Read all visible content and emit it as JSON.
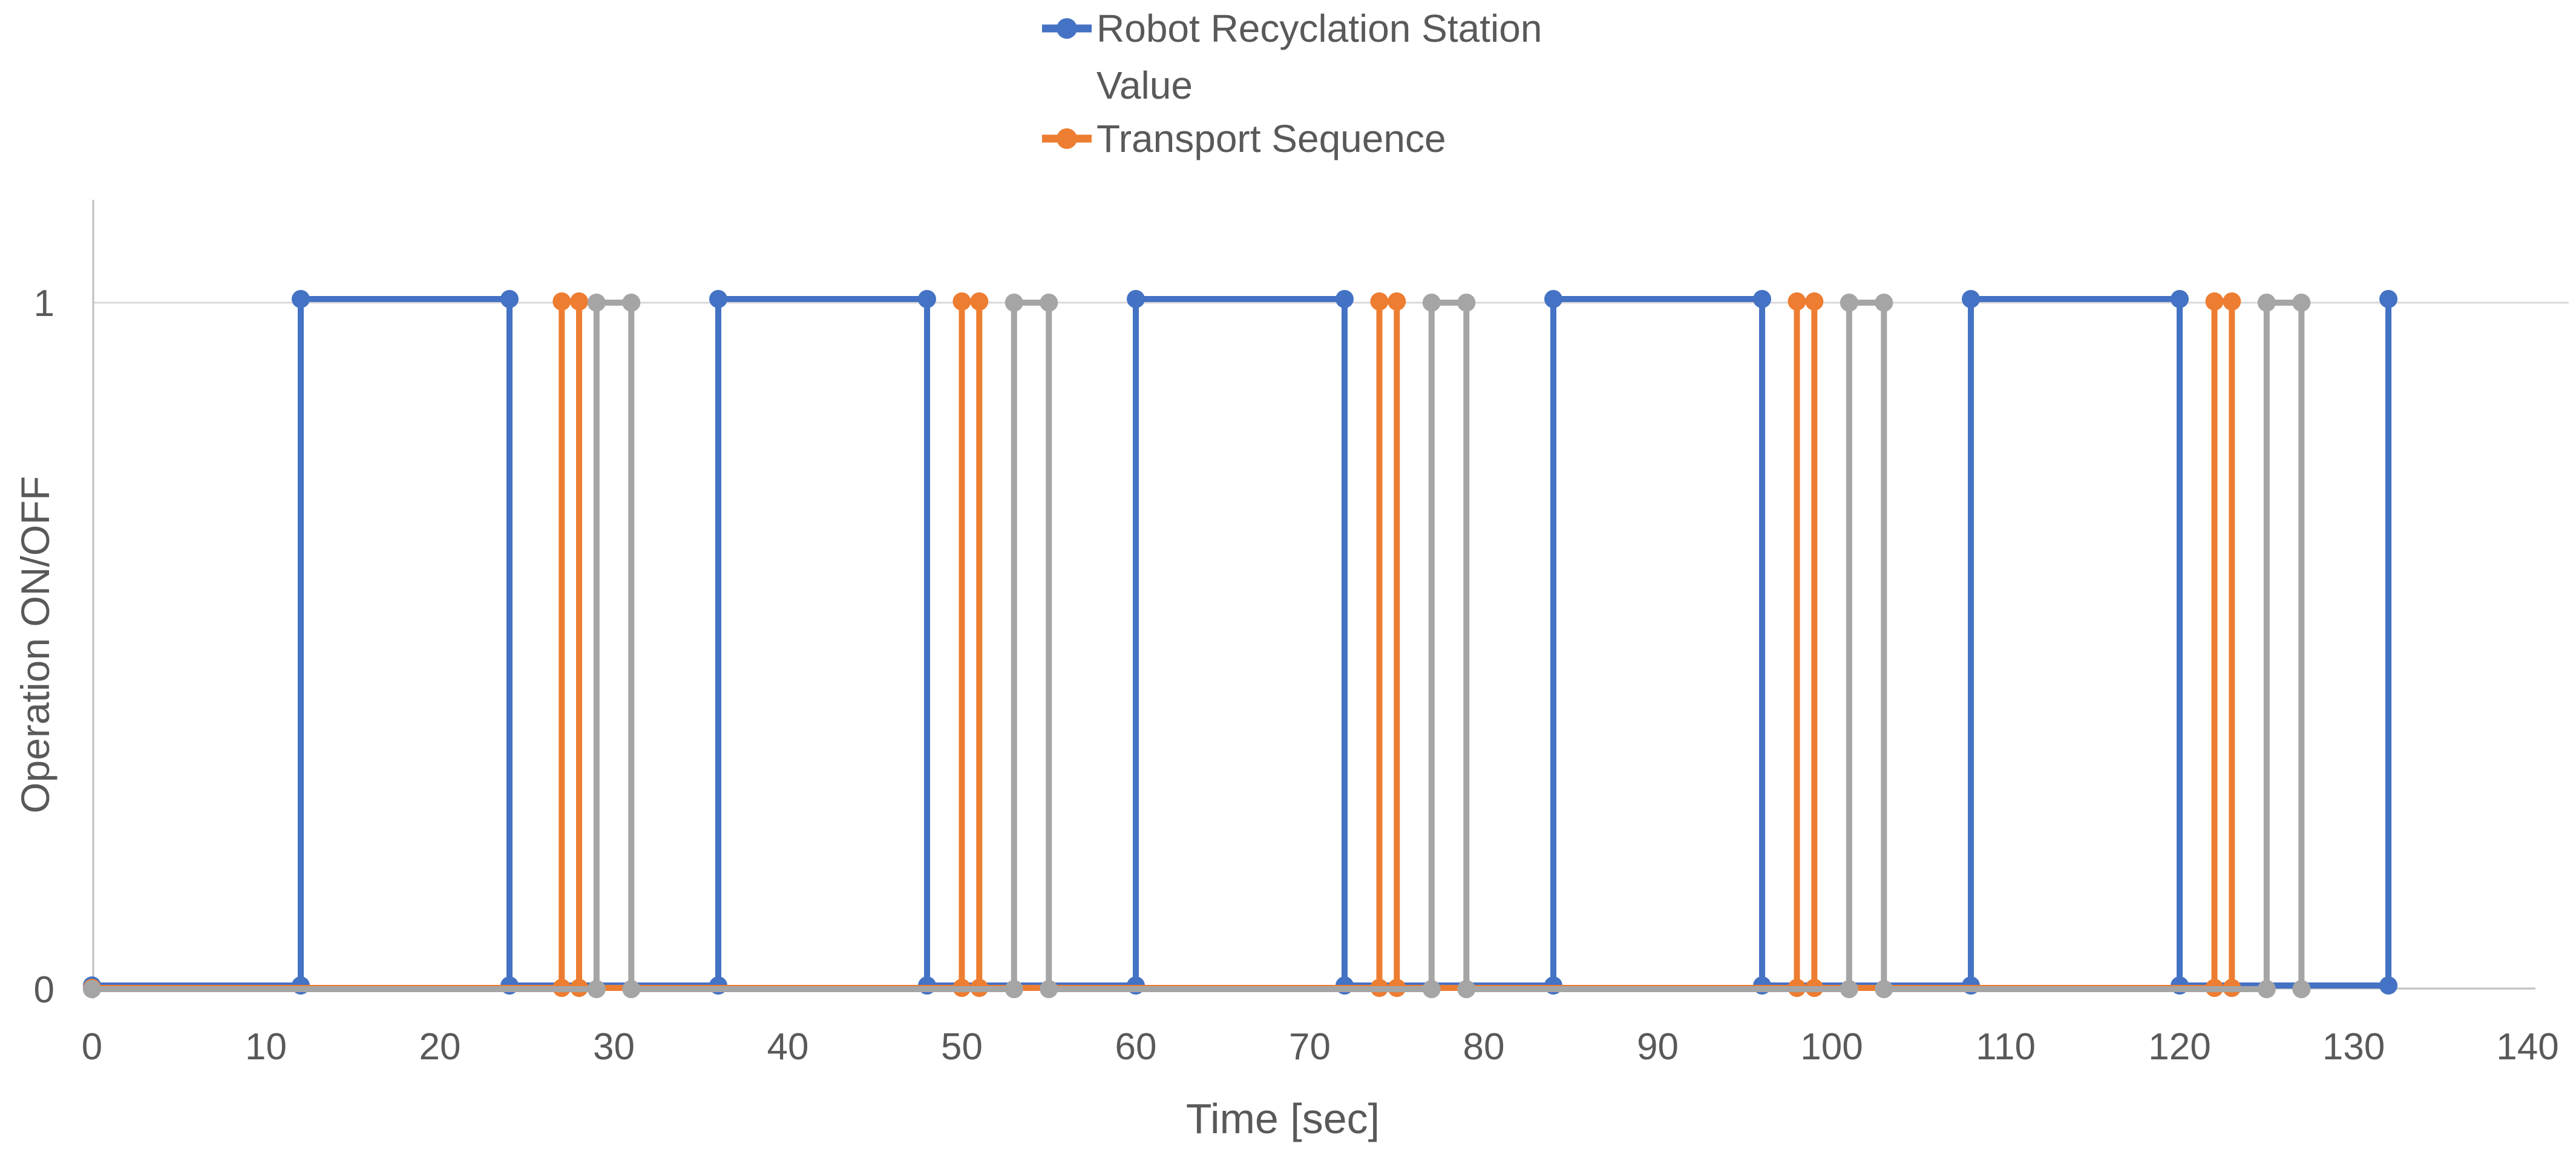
{
  "chart_data": {
    "type": "line",
    "subtype": "step-pulse-with-circle-markers",
    "title": "",
    "xlabel": "Time [sec]",
    "ylabel": "Operation ON/OFF",
    "xlim": [
      0,
      140
    ],
    "ylim": [
      0,
      1
    ],
    "x_ticks": [
      0,
      10,
      20,
      30,
      40,
      50,
      60,
      70,
      80,
      90,
      100,
      110,
      120,
      130,
      140
    ],
    "y_ticks": [
      0,
      1
    ],
    "grid": "single horizontal gridline at y=1",
    "legend_position": "top-center",
    "colors": {
      "blue": "#4472C4",
      "orange": "#ED7D31",
      "gray": "#A5A5A5",
      "gridline": "#D9D9D9",
      "axis_line": "#BFBFBF",
      "label_text": "#595959"
    },
    "series": [
      {
        "name": "Robot Recyclation Station Value",
        "color": "#4472C4",
        "in_legend": true,
        "points": [
          [
            0,
            0
          ],
          [
            12,
            0
          ],
          [
            12,
            1
          ],
          [
            24,
            1
          ],
          [
            24,
            0
          ],
          [
            36,
            0
          ],
          [
            36,
            1
          ],
          [
            48,
            1
          ],
          [
            48,
            0
          ],
          [
            60,
            0
          ],
          [
            60,
            1
          ],
          [
            72,
            1
          ],
          [
            72,
            0
          ],
          [
            84,
            0
          ],
          [
            84,
            1
          ],
          [
            96,
            1
          ],
          [
            96,
            0
          ],
          [
            108,
            0
          ],
          [
            108,
            1
          ],
          [
            120,
            1
          ],
          [
            120,
            0
          ],
          [
            132,
            0
          ],
          [
            132,
            1
          ]
        ]
      },
      {
        "name": "Transport Sequence",
        "color": "#ED7D31",
        "in_legend": true,
        "points": [
          [
            0,
            0
          ],
          [
            27,
            0
          ],
          [
            27,
            1
          ],
          [
            28,
            1
          ],
          [
            28,
            0
          ],
          [
            50,
            0
          ],
          [
            50,
            1
          ],
          [
            51,
            1
          ],
          [
            51,
            0
          ],
          [
            74,
            0
          ],
          [
            74,
            1
          ],
          [
            75,
            1
          ],
          [
            75,
            0
          ],
          [
            98,
            0
          ],
          [
            98,
            1
          ],
          [
            99,
            1
          ],
          [
            99,
            0
          ],
          [
            122,
            0
          ],
          [
            122,
            1
          ],
          [
            123,
            1
          ],
          [
            123,
            0
          ]
        ]
      },
      {
        "name": "",
        "color": "#A5A5A5",
        "in_legend": false,
        "points": [
          [
            0,
            0
          ],
          [
            29,
            0
          ],
          [
            29,
            1
          ],
          [
            31,
            1
          ],
          [
            31,
            0
          ],
          [
            53,
            0
          ],
          [
            53,
            1
          ],
          [
            55,
            1
          ],
          [
            55,
            0
          ],
          [
            77,
            0
          ],
          [
            77,
            1
          ],
          [
            79,
            1
          ],
          [
            79,
            0
          ],
          [
            101,
            0
          ],
          [
            101,
            1
          ],
          [
            103,
            1
          ],
          [
            103,
            0
          ],
          [
            125,
            0
          ],
          [
            125,
            1
          ],
          [
            127,
            1
          ],
          [
            127,
            0
          ]
        ]
      }
    ]
  },
  "legend": {
    "items": [
      {
        "lines": [
          "Robot Recyclation Station",
          "Value"
        ],
        "color": "#4472C4"
      },
      {
        "lines": [
          "Transport Sequence"
        ],
        "color": "#ED7D31"
      }
    ]
  },
  "axes": {
    "x_title": "Time [sec]",
    "y_title": "Operation ON/OFF",
    "x_tick_labels": [
      "0",
      "10",
      "20",
      "30",
      "40",
      "50",
      "60",
      "70",
      "80",
      "90",
      "100",
      "110",
      "120",
      "130",
      "140"
    ],
    "y_tick_labels": [
      "0",
      "1"
    ]
  }
}
